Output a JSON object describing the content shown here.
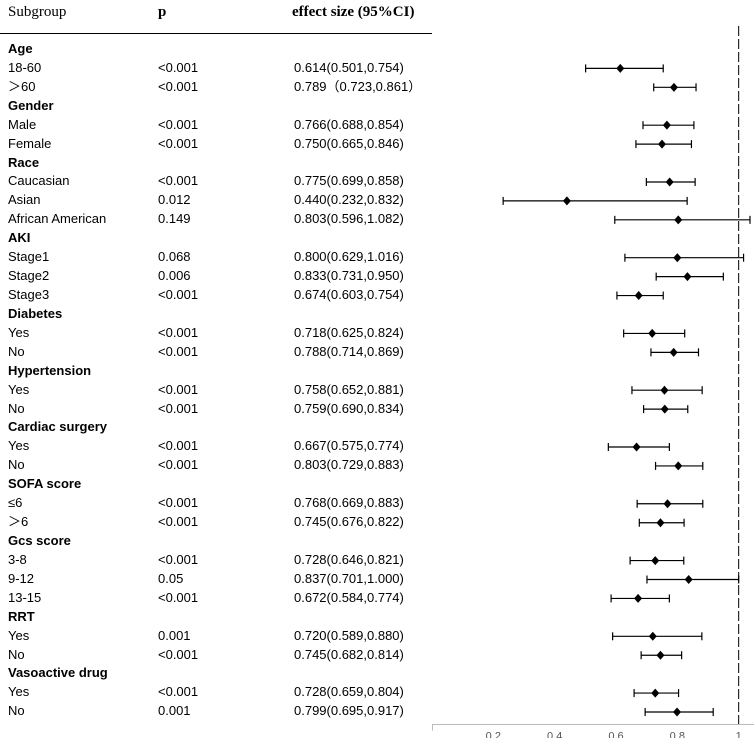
{
  "columns": {
    "subgroup": "Subgroup",
    "p": "p",
    "effect": "effect size (95%CI)"
  },
  "chart_data": {
    "type": "forest",
    "reference_line": 1,
    "xlim": [
      0,
      1.05
    ],
    "xticks": [
      "0.2",
      "0.4",
      "0.6",
      "0.8",
      "1"
    ],
    "tick_values": [
      0.2,
      0.4,
      0.6,
      0.8,
      1.0
    ],
    "groups": [
      {
        "name": "Age",
        "rows": [
          {
            "label": "18-60",
            "p": "<0.001",
            "est_text": "0.614(0.501,0.754)",
            "est": 0.614,
            "lo": 0.501,
            "hi": 0.754
          },
          {
            "label": "＞60",
            "p": "<0.001",
            "est_text": "0.789（0.723,0.861）",
            "est": 0.789,
            "lo": 0.723,
            "hi": 0.861
          }
        ]
      },
      {
        "name": "Gender",
        "rows": [
          {
            "label": "Male",
            "p": "<0.001",
            "est_text": "0.766(0.688,0.854)",
            "est": 0.766,
            "lo": 0.688,
            "hi": 0.854
          },
          {
            "label": "Female",
            "p": "<0.001",
            "est_text": "0.750(0.665,0.846)",
            "est": 0.75,
            "lo": 0.665,
            "hi": 0.846
          }
        ]
      },
      {
        "name": "Race",
        "rows": [
          {
            "label": "Caucasian",
            "p": "<0.001",
            "est_text": "0.775(0.699,0.858)",
            "est": 0.775,
            "lo": 0.699,
            "hi": 0.858
          },
          {
            "label": "Asian",
            "p": "0.012",
            "est_text": "0.440(0.232,0.832)",
            "est": 0.44,
            "lo": 0.232,
            "hi": 0.832
          },
          {
            "label": "African American",
            "p": "0.149",
            "est_text": "0.803(0.596,1.082)",
            "est": 0.803,
            "lo": 0.596,
            "hi": 1.082
          }
        ]
      },
      {
        "name": "AKI",
        "rows": [
          {
            "label": "Stage1",
            "p": "0.068",
            "est_text": "0.800(0.629,1.016)",
            "est": 0.8,
            "lo": 0.629,
            "hi": 1.016
          },
          {
            "label": "Stage2",
            "p": "0.006",
            "est_text": "0.833(0.731,0.950)",
            "est": 0.833,
            "lo": 0.731,
            "hi": 0.95
          },
          {
            "label": "Stage3",
            "p": "<0.001",
            "est_text": "0.674(0.603,0.754)",
            "est": 0.674,
            "lo": 0.603,
            "hi": 0.754
          }
        ]
      },
      {
        "name": "Diabetes",
        "rows": [
          {
            "label": "Yes",
            "p": "<0.001",
            "est_text": "0.718(0.625,0.824)",
            "est": 0.718,
            "lo": 0.625,
            "hi": 0.824
          },
          {
            "label": "No",
            "p": "<0.001",
            "est_text": "0.788(0.714,0.869)",
            "est": 0.788,
            "lo": 0.714,
            "hi": 0.869
          }
        ]
      },
      {
        "name": "Hypertension",
        "rows": [
          {
            "label": "Yes",
            "p": "<0.001",
            "est_text": "0.758(0.652,0.881)",
            "est": 0.758,
            "lo": 0.652,
            "hi": 0.881
          },
          {
            "label": "No",
            "p": "<0.001",
            "est_text": "0.759(0.690,0.834)",
            "est": 0.759,
            "lo": 0.69,
            "hi": 0.834
          }
        ]
      },
      {
        "name": "Cardiac surgery",
        "rows": [
          {
            "label": "Yes",
            "p": "<0.001",
            "est_text": "0.667(0.575,0.774)",
            "est": 0.667,
            "lo": 0.575,
            "hi": 0.774
          },
          {
            "label": "No",
            "p": "<0.001",
            "est_text": "0.803(0.729,0.883)",
            "est": 0.803,
            "lo": 0.729,
            "hi": 0.883
          }
        ]
      },
      {
        "name": "SOFA score",
        "rows": [
          {
            "label": "≤6",
            "p": "<0.001",
            "est_text": "0.768(0.669,0.883)",
            "est": 0.768,
            "lo": 0.669,
            "hi": 0.883
          },
          {
            "label": "＞6",
            "p": "<0.001",
            "est_text": "0.745(0.676,0.822)",
            "est": 0.745,
            "lo": 0.676,
            "hi": 0.822
          }
        ]
      },
      {
        "name": "Gcs score",
        "rows": [
          {
            "label": "3-8",
            "p": "<0.001",
            "est_text": "0.728(0.646,0.821)",
            "est": 0.728,
            "lo": 0.646,
            "hi": 0.821
          },
          {
            "label": "9-12",
            "p": "0.05",
            "est_text": "0.837(0.701,1.000)",
            "est": 0.837,
            "lo": 0.701,
            "hi": 1.0
          },
          {
            "label": "13-15",
            "p": "<0.001",
            "est_text": "0.672(0.584,0.774)",
            "est": 0.672,
            "lo": 0.584,
            "hi": 0.774
          }
        ]
      },
      {
        "name": "RRT",
        "rows": [
          {
            "label": "Yes",
            "p": "0.001",
            "est_text": "0.720(0.589,0.880)",
            "est": 0.72,
            "lo": 0.589,
            "hi": 0.88
          },
          {
            "label": "No",
            "p": "<0.001",
            "est_text": "0.745(0.682,0.814)",
            "est": 0.745,
            "lo": 0.682,
            "hi": 0.814
          }
        ]
      },
      {
        "name": "Vasoactive drug",
        "rows": [
          {
            "label": "Yes",
            "p": "<0.001",
            "est_text": "0.728(0.659,0.804)",
            "est": 0.728,
            "lo": 0.659,
            "hi": 0.804
          },
          {
            "label": "No",
            "p": "0.001",
            "est_text": "0.799(0.695,0.917)",
            "est": 0.799,
            "lo": 0.695,
            "hi": 0.917
          }
        ]
      }
    ]
  }
}
